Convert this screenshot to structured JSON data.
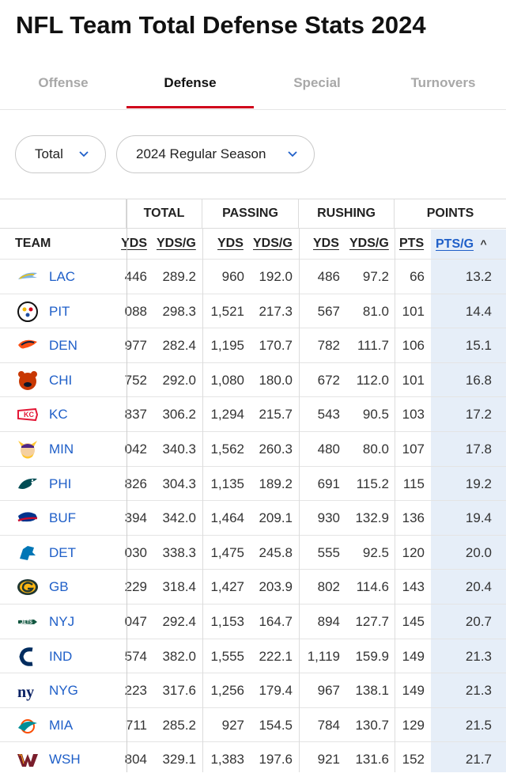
{
  "page": {
    "title": "NFL Team Total Defense Stats 2024"
  },
  "tabs": [
    {
      "label": "Offense",
      "active": false
    },
    {
      "label": "Defense",
      "active": true
    },
    {
      "label": "Special",
      "active": false
    },
    {
      "label": "Turnovers",
      "active": false
    }
  ],
  "filters": {
    "stat_type": "Total",
    "season": "2024 Regular Season"
  },
  "table": {
    "groups": {
      "total": "TOTAL",
      "passing": "PASSING",
      "rushing": "RUSHING",
      "points": "POINTS"
    },
    "columns": {
      "team": "TEAM",
      "total_yds": "YDS",
      "total_ydsg": "YDS/G",
      "pass_yds": "YDS",
      "pass_ydsg": "YDS/G",
      "rush_yds": "YDS",
      "rush_ydsg": "YDS/G",
      "pts": "PTS",
      "ptsg": "PTS/G"
    },
    "sort_indicator": "^",
    "rows": [
      {
        "team": "LAC",
        "logo": "chargers-logo-icon",
        "yds": "446",
        "ydsg": "289.2",
        "pyds": "960",
        "pydsg": "192.0",
        "ryds": "486",
        "rydsg": "97.2",
        "pts": "66",
        "ptsg": "13.2"
      },
      {
        "team": "PIT",
        "logo": "steelers-logo-icon",
        "yds": "088",
        "ydsg": "298.3",
        "pyds": "1,521",
        "pydsg": "217.3",
        "ryds": "567",
        "rydsg": "81.0",
        "pts": "101",
        "ptsg": "14.4"
      },
      {
        "team": "DEN",
        "logo": "broncos-logo-icon",
        "yds": "977",
        "ydsg": "282.4",
        "pyds": "1,195",
        "pydsg": "170.7",
        "ryds": "782",
        "rydsg": "111.7",
        "pts": "106",
        "ptsg": "15.1"
      },
      {
        "team": "CHI",
        "logo": "bears-logo-icon",
        "yds": "752",
        "ydsg": "292.0",
        "pyds": "1,080",
        "pydsg": "180.0",
        "ryds": "672",
        "rydsg": "112.0",
        "pts": "101",
        "ptsg": "16.8"
      },
      {
        "team": "KC",
        "logo": "chiefs-logo-icon",
        "yds": "837",
        "ydsg": "306.2",
        "pyds": "1,294",
        "pydsg": "215.7",
        "ryds": "543",
        "rydsg": "90.5",
        "pts": "103",
        "ptsg": "17.2"
      },
      {
        "team": "MIN",
        "logo": "vikings-logo-icon",
        "yds": "042",
        "ydsg": "340.3",
        "pyds": "1,562",
        "pydsg": "260.3",
        "ryds": "480",
        "rydsg": "80.0",
        "pts": "107",
        "ptsg": "17.8"
      },
      {
        "team": "PHI",
        "logo": "eagles-logo-icon",
        "yds": "826",
        "ydsg": "304.3",
        "pyds": "1,135",
        "pydsg": "189.2",
        "ryds": "691",
        "rydsg": "115.2",
        "pts": "115",
        "ptsg": "19.2"
      },
      {
        "team": "BUF",
        "logo": "bills-logo-icon",
        "yds": "394",
        "ydsg": "342.0",
        "pyds": "1,464",
        "pydsg": "209.1",
        "ryds": "930",
        "rydsg": "132.9",
        "pts": "136",
        "ptsg": "19.4"
      },
      {
        "team": "DET",
        "logo": "lions-logo-icon",
        "yds": "030",
        "ydsg": "338.3",
        "pyds": "1,475",
        "pydsg": "245.8",
        "ryds": "555",
        "rydsg": "92.5",
        "pts": "120",
        "ptsg": "20.0"
      },
      {
        "team": "GB",
        "logo": "packers-logo-icon",
        "yds": "229",
        "ydsg": "318.4",
        "pyds": "1,427",
        "pydsg": "203.9",
        "ryds": "802",
        "rydsg": "114.6",
        "pts": "143",
        "ptsg": "20.4"
      },
      {
        "team": "NYJ",
        "logo": "jets-logo-icon",
        "yds": "047",
        "ydsg": "292.4",
        "pyds": "1,153",
        "pydsg": "164.7",
        "ryds": "894",
        "rydsg": "127.7",
        "pts": "145",
        "ptsg": "20.7"
      },
      {
        "team": "IND",
        "logo": "colts-logo-icon",
        "yds": "574",
        "ydsg": "382.0",
        "pyds": "1,555",
        "pydsg": "222.1",
        "ryds": "1,119",
        "rydsg": "159.9",
        "pts": "149",
        "ptsg": "21.3"
      },
      {
        "team": "NYG",
        "logo": "giants-logo-icon",
        "yds": "223",
        "ydsg": "317.6",
        "pyds": "1,256",
        "pydsg": "179.4",
        "ryds": "967",
        "rydsg": "138.1",
        "pts": "149",
        "ptsg": "21.3"
      },
      {
        "team": "MIA",
        "logo": "dolphins-logo-icon",
        "yds": "711",
        "ydsg": "285.2",
        "pyds": "927",
        "pydsg": "154.5",
        "ryds": "784",
        "rydsg": "130.7",
        "pts": "129",
        "ptsg": "21.5"
      },
      {
        "team": "WSH",
        "logo": "commanders-logo-icon",
        "yds": "804",
        "ydsg": "329.1",
        "pyds": "1,383",
        "pydsg": "197.6",
        "ryds": "921",
        "rydsg": "131.6",
        "pts": "152",
        "ptsg": "21.7"
      }
    ]
  },
  "colors": {
    "accent": "#d0021b",
    "link": "#1f5fc8",
    "sorted_bg": "#e6eef8"
  }
}
